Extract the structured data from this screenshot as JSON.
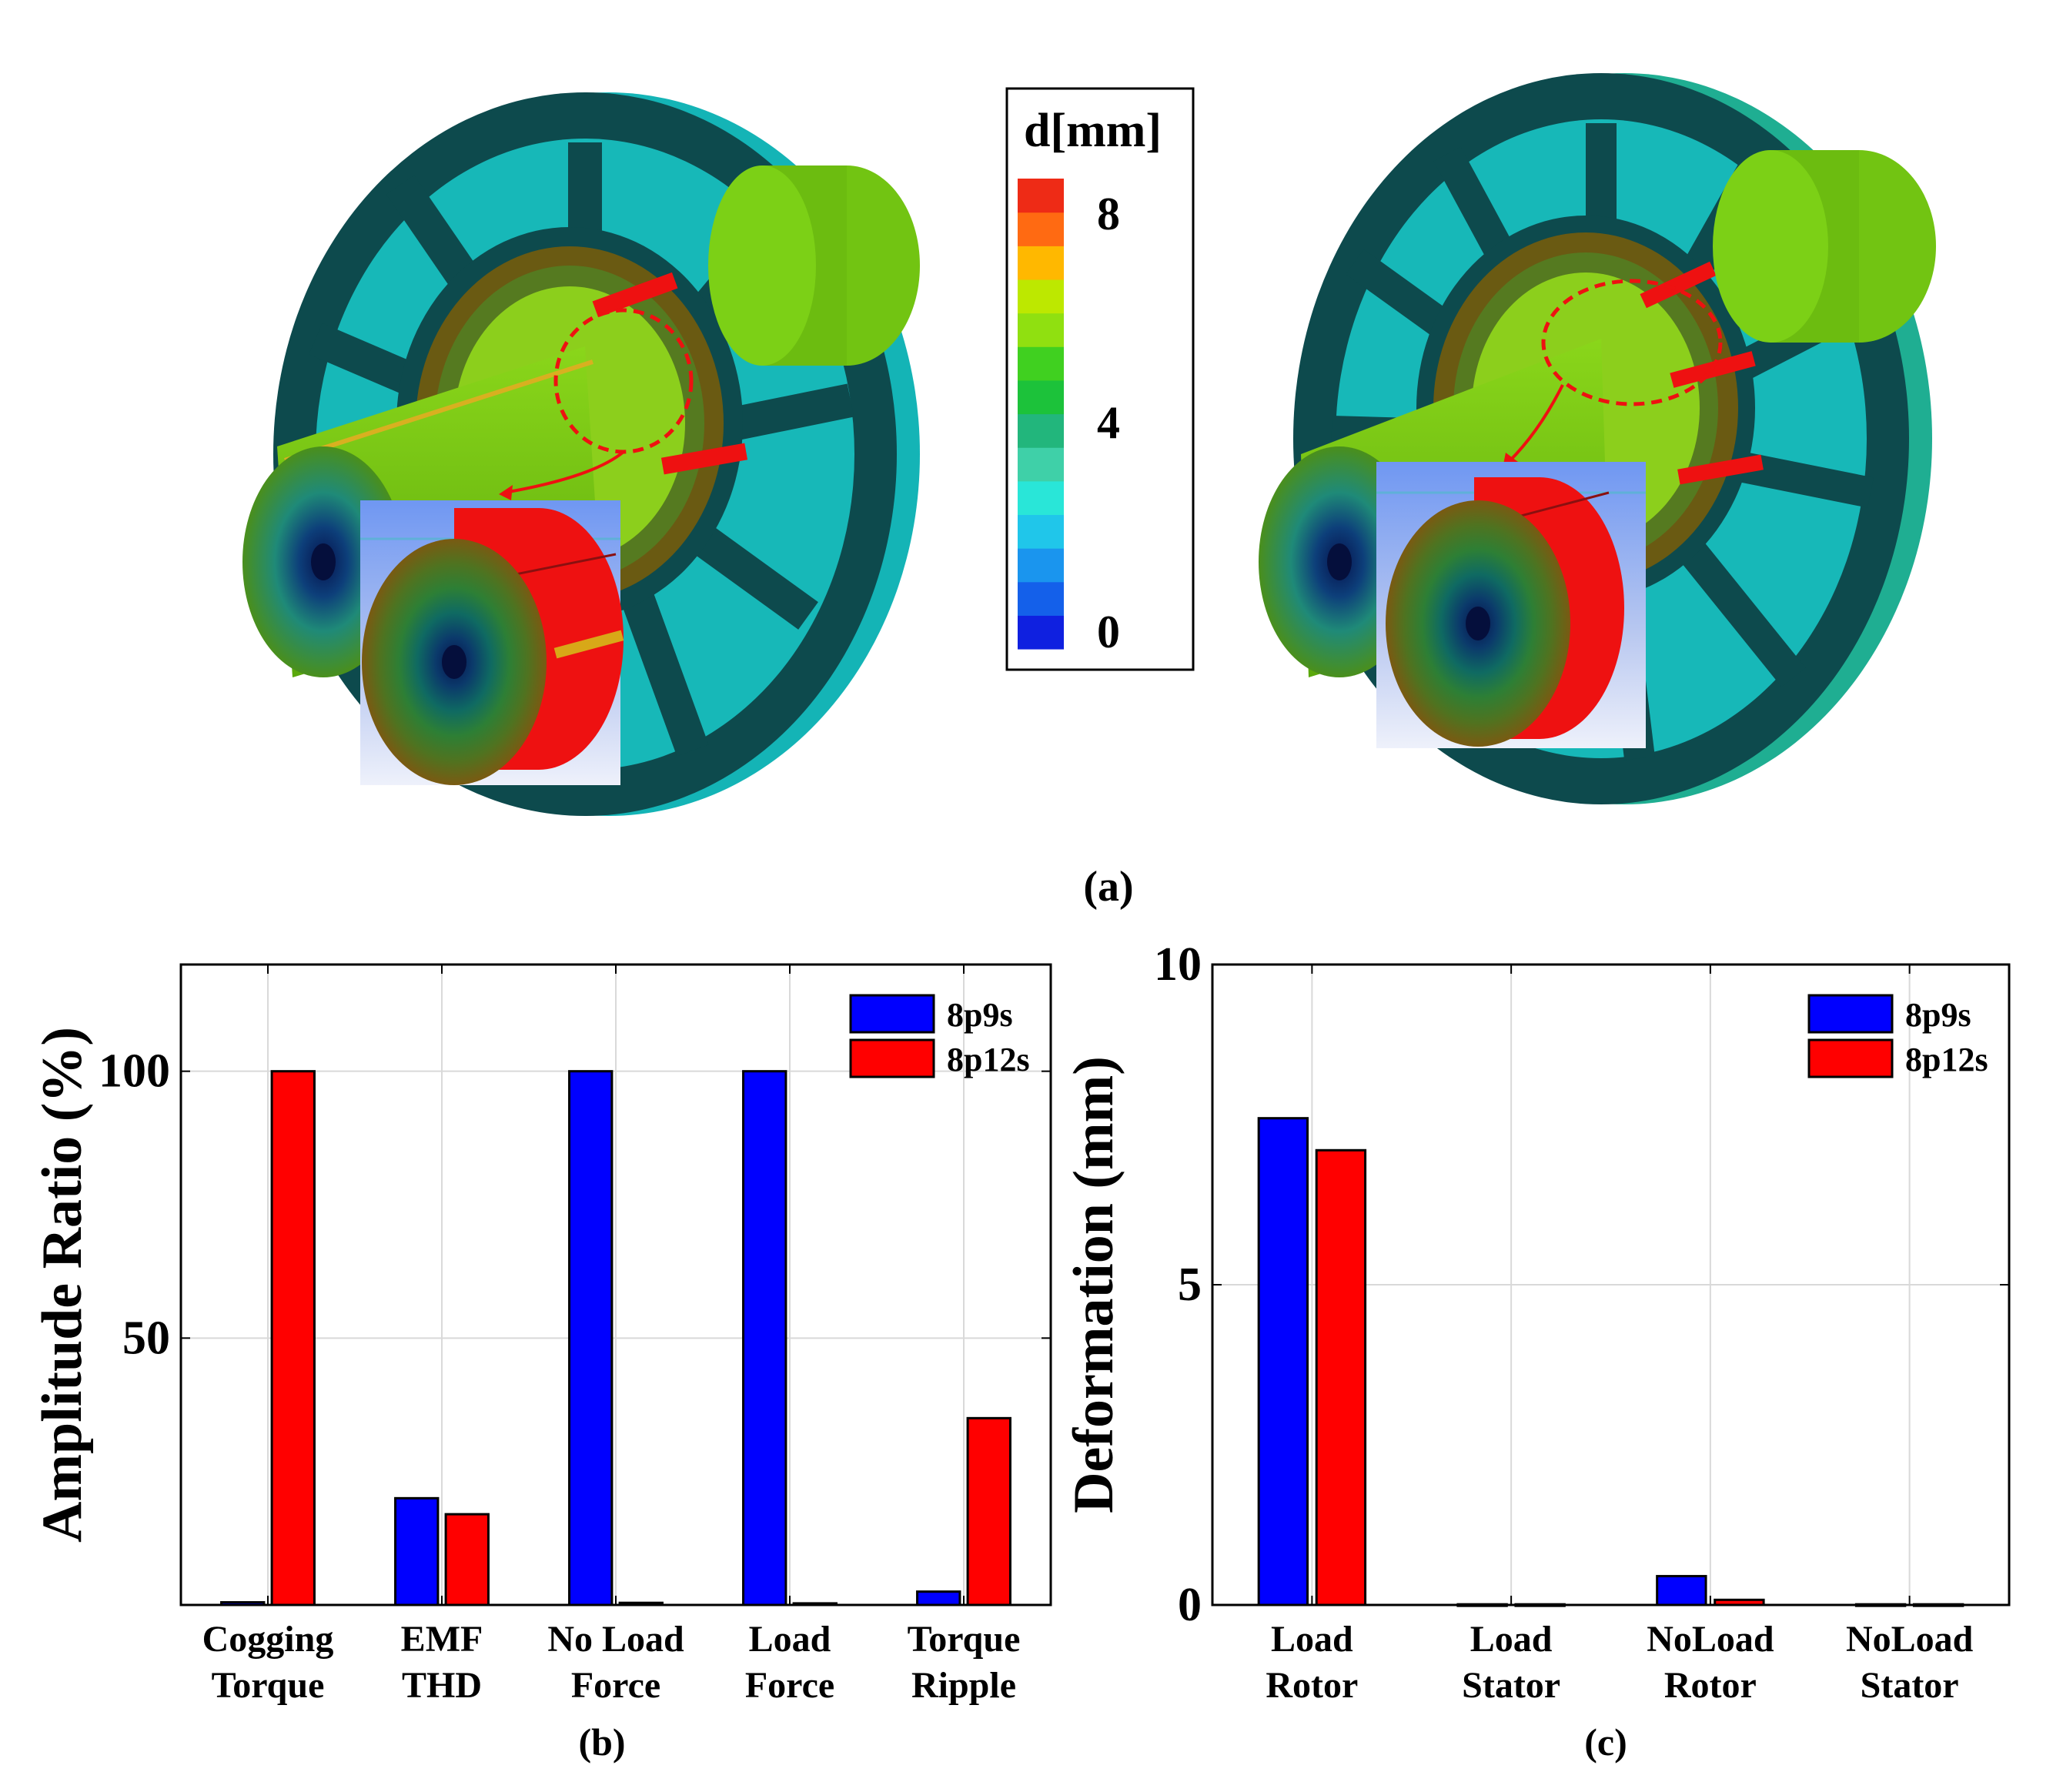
{
  "panel_labels": {
    "a": "(a)",
    "b": "(b)",
    "c": "(c)"
  },
  "colors": {
    "series_8p9s": "#0000ff",
    "series_8p12s": "#ff0000",
    "stator_teal": "#1fb5b0",
    "frame_dark": "#0d4a4d",
    "rotor_green": "#7fcf10",
    "deform_red": "#ee1111"
  },
  "colorbar": {
    "title": "d[mm]",
    "ticks": [
      {
        "value": 8,
        "label": "8"
      },
      {
        "value": 4,
        "label": "4"
      },
      {
        "value": 0,
        "label": "0"
      }
    ],
    "range": [
      0,
      9
    ],
    "colors": [
      "#0f20e0",
      "#1460ea",
      "#1a95ee",
      "#20c6ea",
      "#29e6d8",
      "#3fd0a8",
      "#22b67c",
      "#1cc23a",
      "#40d020",
      "#90e010",
      "#bde800",
      "#ffb800",
      "#ff6a12",
      "#ee2b16"
    ]
  },
  "chart_data": [
    {
      "type": "bar",
      "panel": "(b)",
      "categories": [
        "Cogging Torque",
        "EMF THD",
        "No Load Force",
        "Load Force",
        "Torque Ripple"
      ],
      "category_lines": [
        [
          "Cogging",
          "Torque"
        ],
        [
          "EMF",
          "THD"
        ],
        [
          "No Load",
          "Force"
        ],
        [
          "Load",
          "Force"
        ],
        [
          "Torque",
          "Ripple"
        ]
      ],
      "series": [
        {
          "name": "8p9s",
          "values": [
            0.5,
            20,
            100,
            100,
            2.5
          ]
        },
        {
          "name": "8p12s",
          "values": [
            100,
            17,
            0.4,
            0.3,
            35
          ]
        }
      ],
      "title": "",
      "xlabel": "",
      "ylabel": "Amplitude Ratio (%)",
      "ylim": [
        0,
        120
      ],
      "yticks": [
        {
          "value": 50,
          "label": "50"
        },
        {
          "value": 100,
          "label": "100"
        }
      ],
      "grid": true,
      "legend": "top-right"
    },
    {
      "type": "bar",
      "panel": "(c)",
      "categories": [
        "Load Rotor",
        "Load Stator",
        "NoLoad Rotor",
        "NoLoad Stator"
      ],
      "category_lines": [
        [
          "Load",
          "Rotor"
        ],
        [
          "Load",
          "Stator"
        ],
        [
          "NoLoad",
          "Rotor"
        ],
        [
          "NoLoad",
          "Stator"
        ]
      ],
      "series": [
        {
          "name": "8p9s",
          "values": [
            7.6,
            0.01,
            0.45,
            0.01
          ]
        },
        {
          "name": "8p12s",
          "values": [
            7.1,
            0.01,
            0.08,
            0.01
          ]
        }
      ],
      "title": "",
      "xlabel": "",
      "ylabel": "Deformation (mm)",
      "ylim": [
        0,
        10
      ],
      "yticks": [
        {
          "value": 0,
          "label": "0"
        },
        {
          "value": 5,
          "label": "5"
        },
        {
          "value": 10,
          "label": "10"
        }
      ],
      "grid": true,
      "legend": "top-right"
    }
  ]
}
